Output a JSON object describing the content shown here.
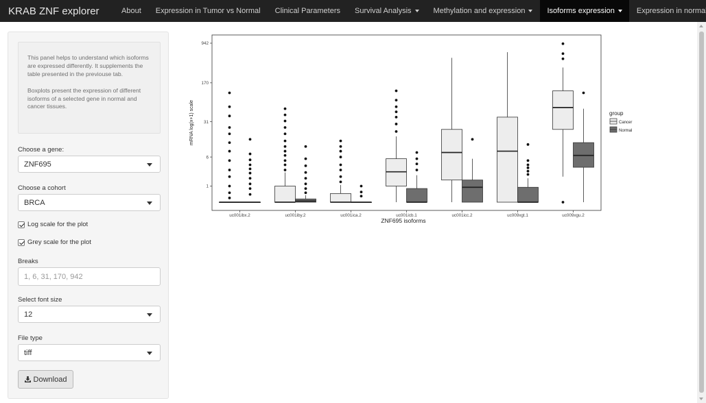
{
  "navbar": {
    "brand": "KRAB ZNF explorer",
    "items": [
      {
        "label": "About"
      },
      {
        "label": "Expression in Tumor vs Normal"
      },
      {
        "label": "Clinical Parameters"
      },
      {
        "label": "Survival Analysis"
      },
      {
        "label": "Methylation and expression"
      },
      {
        "label": "Isoforms expression"
      },
      {
        "label": "Expression in normal tissue"
      }
    ]
  },
  "sidebar": {
    "info_p1": "This panel helps to understand which isoforms are expressed differently. It supplements the table presented in the previouse tab.",
    "info_p2": "Boxplots present the expression of different isoforms of a selected gene in normal and cancer tissues.",
    "gene_label": "Choose a gene:",
    "gene_value": "ZNF695",
    "cohort_label": "Choose a cohort",
    "cohort_value": "BRCA",
    "log_scale_label": "Log scale for the plot",
    "log_scale_checked": true,
    "grey_scale_label": "Grey scale for the plot",
    "grey_scale_checked": true,
    "breaks_label": "Breaks",
    "breaks_placeholder": "1, 6, 31, 170, 942",
    "font_size_label": "Select font size",
    "font_size_value": "12",
    "file_type_label": "File type",
    "file_type_value": "tiff",
    "download_label": "Download"
  },
  "chart_data": {
    "type": "boxplot",
    "xlabel": "ZNF695 isoforms",
    "ylabel": "mRNA log(x+1) scale",
    "y_scale": "log(x+1)",
    "y_ticks": [
      1,
      6,
      31,
      170,
      942
    ],
    "categories": [
      "uc001ibx.2",
      "uc001iby.2",
      "uc001ica.2",
      "uc001icb.1",
      "uc001icc.2",
      "uc009xgt.1",
      "uc009xgu.2"
    ],
    "legend": {
      "title": "group",
      "entries": [
        "Cancer",
        "Normal"
      ],
      "position": "right"
    },
    "grid": false,
    "colors": {
      "Cancer": "#ededed",
      "Normal": "#6e6e6e"
    },
    "series": [
      {
        "name": "Cancer",
        "boxes": [
          {
            "whisker_low": 0,
            "q1": 0,
            "median": 0,
            "q3": 0,
            "whisker_high": 0,
            "outliers": [
              0.2,
              0.5,
              1,
              2,
              3,
              5,
              8,
              12,
              18,
              24,
              40,
              60,
              110
            ]
          },
          {
            "whisker_low": 0,
            "q1": 0,
            "median": 0,
            "q3": 1.0,
            "whisker_high": 2.6,
            "outliers": [
              3,
              4,
              5,
              6.5,
              8,
              10,
              13,
              18,
              24,
              32,
              42,
              55
            ]
          },
          {
            "whisker_low": 0,
            "q1": 0,
            "median": 0,
            "q3": 0.45,
            "whisker_high": 1.1,
            "outliers": [
              1.4,
              2,
              3,
              4,
              6,
              8,
              10,
              13
            ]
          },
          {
            "whisker_low": 0,
            "q1": 1.0,
            "median": 2.7,
            "q3": 5.5,
            "whisker_high": 16,
            "outliers": [
              20,
              28,
              38,
              48,
              60,
              80,
              120
            ]
          },
          {
            "whisker_low": 0,
            "q1": 1.6,
            "median": 7.5,
            "q3": 22,
            "whisker_high": 500,
            "outliers": []
          },
          {
            "whisker_low": 0,
            "q1": 0,
            "median": 8,
            "q3": 38,
            "whisker_high": 640,
            "outliers": []
          },
          {
            "whisker_low": 2,
            "q1": 22,
            "median": 58,
            "q3": 120,
            "whisker_high": 330,
            "outliers": [
              0,
              480,
              600,
              920
            ]
          }
        ]
      },
      {
        "name": "Normal",
        "boxes": [
          {
            "whisker_low": 0,
            "q1": 0,
            "median": 0,
            "q3": 0,
            "whisker_high": 0,
            "outliers": [
              0.4,
              0.8,
              1.2,
              1.8,
              2.5,
              3.2,
              4,
              5.2,
              7,
              14
            ]
          },
          {
            "whisker_low": 0,
            "q1": 0,
            "median": 0.05,
            "q3": 0.15,
            "whisker_high": 0.35,
            "outliers": [
              0.5,
              0.8,
              1.2,
              1.8,
              2.6,
              3.8,
              5.5,
              10
            ]
          },
          {
            "whisker_low": 0,
            "q1": 0,
            "median": 0,
            "q3": 0,
            "whisker_high": 0,
            "outliers": [
              0.3,
              0.55,
              1
            ]
          },
          {
            "whisker_low": 0,
            "q1": 0,
            "median": 0,
            "q3": 0.8,
            "whisker_high": 2.2,
            "outliers": [
              3,
              4.2,
              5.5,
              7.5
            ]
          },
          {
            "whisker_low": 0,
            "q1": 0,
            "median": 0.9,
            "q3": 1.6,
            "whisker_high": 5.5,
            "outliers": [
              14
            ]
          },
          {
            "whisker_low": 0,
            "q1": 0,
            "median": 0,
            "q3": 0.9,
            "whisker_high": 1.8,
            "outliers": [
              2.3,
              2.8,
              3.4,
              4,
              5,
              11
            ]
          },
          {
            "whisker_low": 0,
            "q1": 3.5,
            "median": 6.5,
            "q3": 12,
            "whisker_high": 55,
            "outliers": [
              110
            ]
          }
        ]
      }
    ]
  }
}
